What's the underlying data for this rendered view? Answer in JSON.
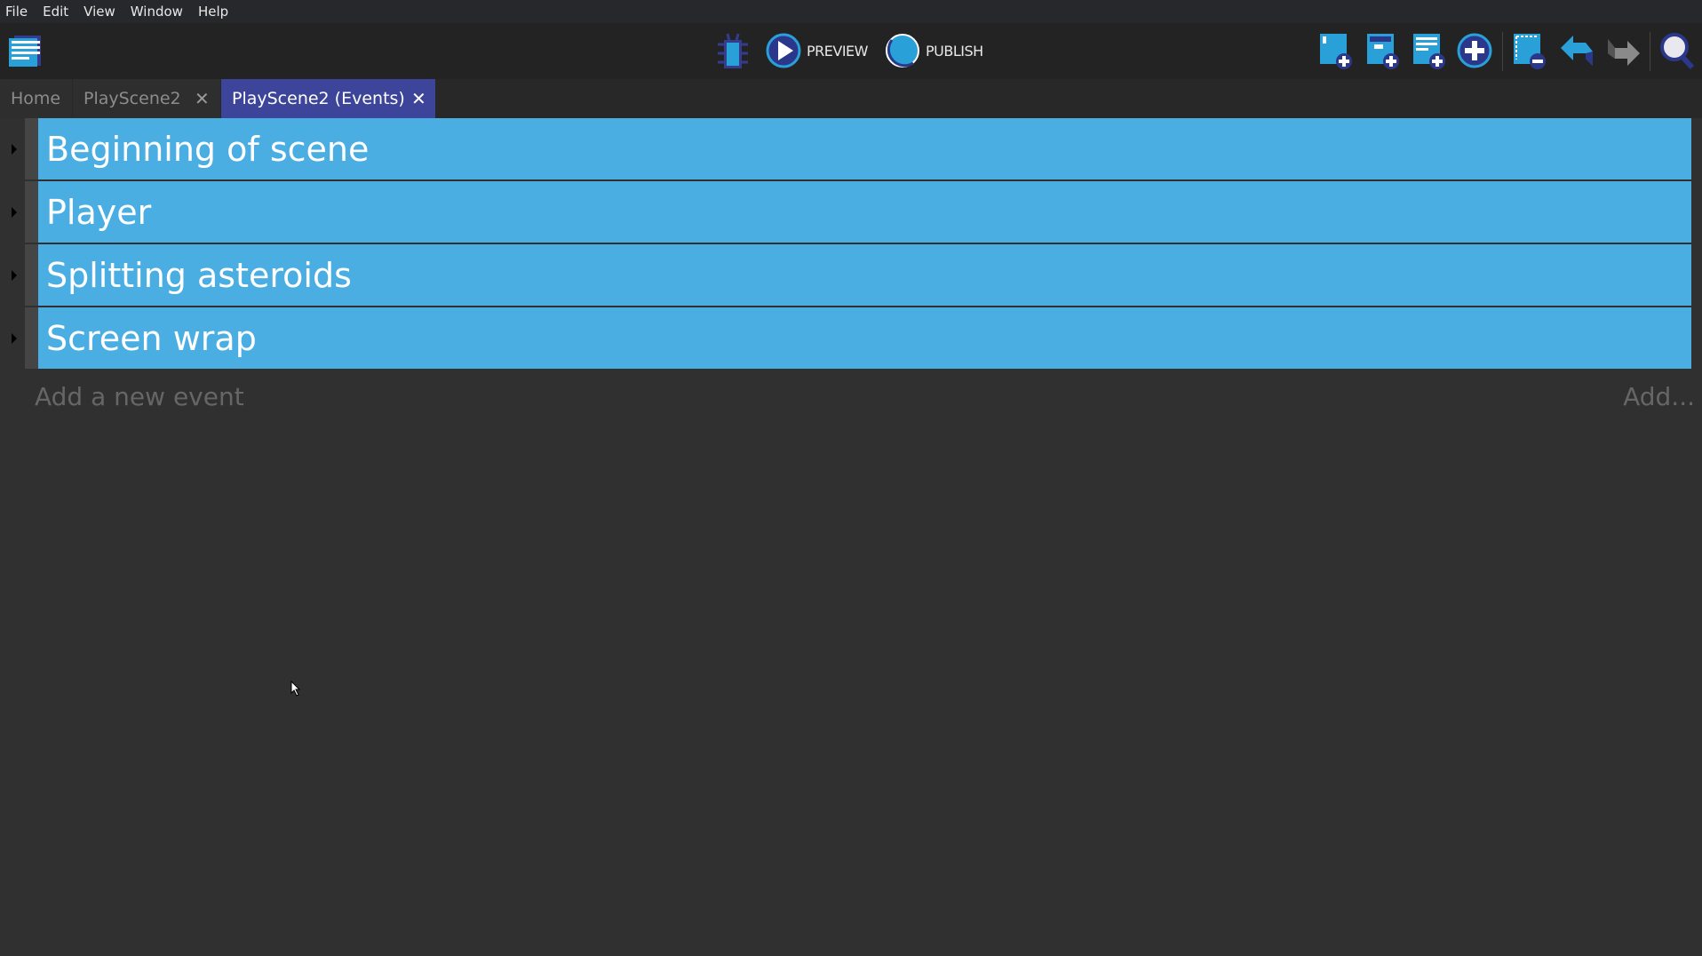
{
  "menu": [
    "File",
    "Edit",
    "View",
    "Window",
    "Help"
  ],
  "toolbar": {
    "preview": "PREVIEW",
    "publish": "PUBLISH",
    "icons": [
      "project-manager-icon",
      "debugger-icon",
      "preview-icon",
      "publish-icon",
      "add-event-icon",
      "add-subevent-icon",
      "add-comment-icon",
      "add-other-icon",
      "delete-icon",
      "undo-icon",
      "redo-icon",
      "search-icon"
    ]
  },
  "tabs": [
    {
      "label": "Home"
    },
    {
      "label": "PlayScene2",
      "close": "✕"
    },
    {
      "label": "PlayScene2 (Events)",
      "close": "✕",
      "active": true
    }
  ],
  "events": [
    {
      "label": "Beginning of scene"
    },
    {
      "label": "Player"
    },
    {
      "label": "Splitting asteroids"
    },
    {
      "label": "Screen wrap"
    }
  ],
  "add_event": {
    "placeholder": "Add a new event",
    "button": "Add..."
  },
  "colors": {
    "event_group": "#4aaee3",
    "active_tab": "#3c4599",
    "background": "#303030"
  }
}
